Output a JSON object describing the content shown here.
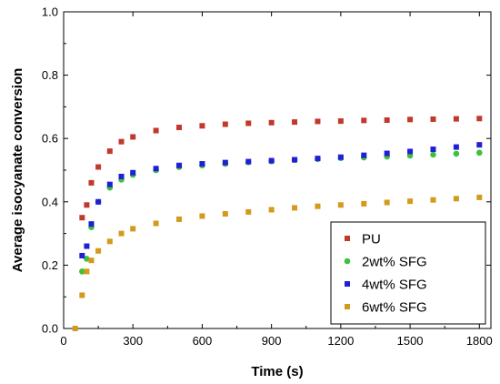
{
  "chart_data": {
    "type": "scatter",
    "title": "",
    "xlabel": "Time (s)",
    "ylabel": "Average isocyanate conversion",
    "xlim": [
      0,
      1850
    ],
    "ylim": [
      0.0,
      1.0
    ],
    "xticks": [
      0,
      300,
      600,
      900,
      1200,
      1500,
      1800
    ],
    "xtick_labels": [
      "0",
      "300",
      "600",
      "900",
      "1200",
      "1500",
      "1800"
    ],
    "yticks": [
      0.0,
      0.2,
      0.4,
      0.6,
      0.8,
      1.0
    ],
    "ytick_labels": [
      "0.0",
      "0.2",
      "0.4",
      "0.6",
      "0.8",
      "1.0"
    ],
    "grid": false,
    "legend_position": "bottom-right",
    "series": [
      {
        "name": "PU",
        "color": "#c0392b",
        "marker": "square",
        "x": [
          80,
          100,
          120,
          150,
          200,
          250,
          300,
          400,
          500,
          600,
          700,
          800,
          900,
          1000,
          1100,
          1200,
          1300,
          1400,
          1500,
          1600,
          1700,
          1800
        ],
        "y": [
          0.35,
          0.39,
          0.46,
          0.51,
          0.56,
          0.59,
          0.605,
          0.625,
          0.635,
          0.64,
          0.645,
          0.648,
          0.65,
          0.652,
          0.654,
          0.655,
          0.657,
          0.658,
          0.66,
          0.661,
          0.662,
          0.663
        ]
      },
      {
        "name": "2wt% SFG",
        "color": "#3ec13e",
        "marker": "circle",
        "x": [
          80,
          100,
          120,
          150,
          200,
          250,
          300,
          400,
          500,
          600,
          700,
          800,
          900,
          1000,
          1100,
          1200,
          1300,
          1400,
          1500,
          1600,
          1700,
          1800
        ],
        "y": [
          0.18,
          0.22,
          0.32,
          0.4,
          0.445,
          0.47,
          0.485,
          0.5,
          0.51,
          0.515,
          0.52,
          0.525,
          0.528,
          0.532,
          0.535,
          0.538,
          0.54,
          0.543,
          0.546,
          0.549,
          0.552,
          0.555
        ]
      },
      {
        "name": "4wt% SFG",
        "color": "#1f1fd6",
        "marker": "square",
        "x": [
          80,
          100,
          120,
          150,
          200,
          250,
          300,
          400,
          500,
          600,
          700,
          800,
          900,
          1000,
          1100,
          1200,
          1300,
          1400,
          1500,
          1600,
          1700,
          1800
        ],
        "y": [
          0.23,
          0.26,
          0.33,
          0.4,
          0.455,
          0.48,
          0.492,
          0.505,
          0.515,
          0.52,
          0.524,
          0.527,
          0.53,
          0.533,
          0.537,
          0.541,
          0.547,
          0.553,
          0.559,
          0.566,
          0.573,
          0.58
        ]
      },
      {
        "name": "6wt% SFG",
        "color": "#d49a1a",
        "marker": "square",
        "x": [
          50,
          80,
          100,
          120,
          150,
          200,
          250,
          300,
          400,
          500,
          600,
          700,
          800,
          900,
          1000,
          1100,
          1200,
          1300,
          1400,
          1500,
          1600,
          1700,
          1800
        ],
        "y": [
          0.0,
          0.105,
          0.18,
          0.215,
          0.245,
          0.275,
          0.3,
          0.315,
          0.332,
          0.345,
          0.355,
          0.362,
          0.368,
          0.375,
          0.381,
          0.386,
          0.39,
          0.394,
          0.398,
          0.402,
          0.406,
          0.41,
          0.414
        ]
      }
    ]
  }
}
